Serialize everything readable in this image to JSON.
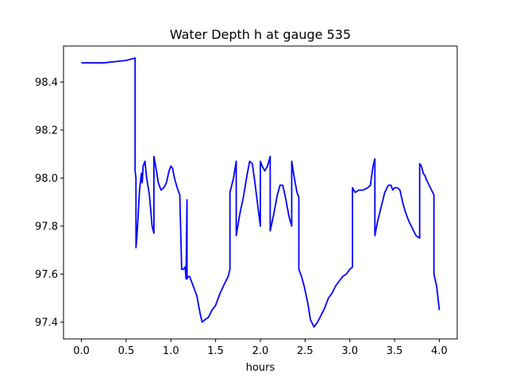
{
  "chart_data": {
    "type": "line",
    "title": "Water Depth h at gauge 535",
    "xlabel": "hours",
    "ylabel": "",
    "xlim": [
      -0.2,
      4.2
    ],
    "ylim": [
      97.33,
      98.55
    ],
    "grid": false,
    "legend": "none",
    "x_ticks": [
      0.0,
      0.5,
      1.0,
      1.5,
      2.0,
      2.5,
      3.0,
      3.5,
      4.0
    ],
    "x_tick_labels": [
      "0.0",
      "0.5",
      "1.0",
      "1.5",
      "2.0",
      "2.5",
      "3.0",
      "3.5",
      "4.0"
    ],
    "y_ticks": [
      97.4,
      97.6,
      97.8,
      98.0,
      98.2,
      98.4
    ],
    "y_tick_labels": [
      "97.4",
      "97.6",
      "97.8",
      "98.0",
      "98.2",
      "98.4"
    ],
    "series": [
      {
        "name": "",
        "color": "#0000ff",
        "x": [
          0.0,
          0.25,
          0.5,
          0.6,
          0.6,
          0.61,
          0.61,
          0.62,
          0.65,
          0.67,
          0.68,
          0.69,
          0.71,
          0.73,
          0.76,
          0.79,
          0.81,
          0.81,
          0.83,
          0.86,
          0.89,
          0.92,
          0.95,
          0.98,
          1.0,
          1.02,
          1.04,
          1.07,
          1.1,
          1.12,
          1.12,
          1.14,
          1.16,
          1.17,
          1.18,
          1.18,
          1.19,
          1.21,
          1.23,
          1.25,
          1.27,
          1.29,
          1.31,
          1.33,
          1.35,
          1.38,
          1.42,
          1.46,
          1.5,
          1.55,
          1.6,
          1.64,
          1.66,
          1.66,
          1.7,
          1.73,
          1.73,
          1.77,
          1.81,
          1.85,
          1.88,
          1.91,
          1.94,
          1.98,
          2.0,
          2.0,
          2.02,
          2.05,
          2.08,
          2.11,
          2.11,
          2.15,
          2.19,
          2.22,
          2.25,
          2.28,
          2.32,
          2.35,
          2.35,
          2.38,
          2.41,
          2.43,
          2.43,
          2.46,
          2.49,
          2.53,
          2.56,
          2.6,
          2.64,
          2.68,
          2.72,
          2.76,
          2.8,
          2.84,
          2.88,
          2.92,
          2.96,
          3.0,
          3.03,
          3.03,
          3.06,
          3.1,
          3.15,
          3.2,
          3.23,
          3.24,
          3.26,
          3.28,
          3.28,
          3.31,
          3.35,
          3.39,
          3.43,
          3.46,
          3.48,
          3.5,
          3.53,
          3.56,
          3.59,
          3.62,
          3.66,
          3.7,
          3.74,
          3.78,
          3.78,
          3.8,
          3.82,
          3.84,
          3.86,
          3.9,
          3.94,
          3.94,
          3.97,
          4.0
        ],
        "y": [
          98.48,
          98.48,
          98.49,
          98.5,
          98.03,
          98.0,
          97.71,
          97.75,
          97.95,
          98.02,
          97.98,
          98.05,
          98.07,
          98.0,
          97.93,
          97.8,
          97.77,
          98.09,
          98.05,
          97.98,
          97.95,
          97.96,
          97.98,
          98.03,
          98.05,
          98.04,
          98.0,
          97.96,
          97.93,
          97.63,
          97.62,
          97.62,
          97.63,
          97.58,
          97.91,
          97.58,
          97.59,
          97.59,
          97.57,
          97.55,
          97.53,
          97.51,
          97.47,
          97.43,
          97.4,
          97.41,
          97.42,
          97.45,
          97.47,
          97.52,
          97.56,
          97.59,
          97.62,
          97.94,
          98.0,
          98.07,
          97.76,
          97.85,
          97.92,
          98.01,
          98.07,
          98.06,
          97.98,
          97.86,
          97.8,
          98.07,
          98.05,
          98.03,
          98.05,
          98.09,
          97.78,
          97.85,
          97.93,
          97.97,
          97.97,
          97.92,
          97.84,
          97.8,
          98.07,
          98.0,
          97.94,
          97.92,
          97.62,
          97.59,
          97.55,
          97.48,
          97.41,
          97.38,
          97.4,
          97.43,
          97.46,
          97.5,
          97.52,
          97.55,
          97.57,
          97.59,
          97.6,
          97.62,
          97.63,
          97.96,
          97.94,
          97.95,
          97.95,
          97.96,
          97.97,
          98.0,
          98.05,
          98.08,
          97.76,
          97.82,
          97.88,
          97.94,
          97.97,
          97.97,
          97.95,
          97.96,
          97.96,
          97.95,
          97.9,
          97.86,
          97.82,
          97.79,
          97.76,
          97.75,
          98.06,
          98.05,
          98.02,
          98.01,
          97.99,
          97.96,
          97.93,
          97.6,
          97.55,
          97.45
        ]
      }
    ]
  }
}
